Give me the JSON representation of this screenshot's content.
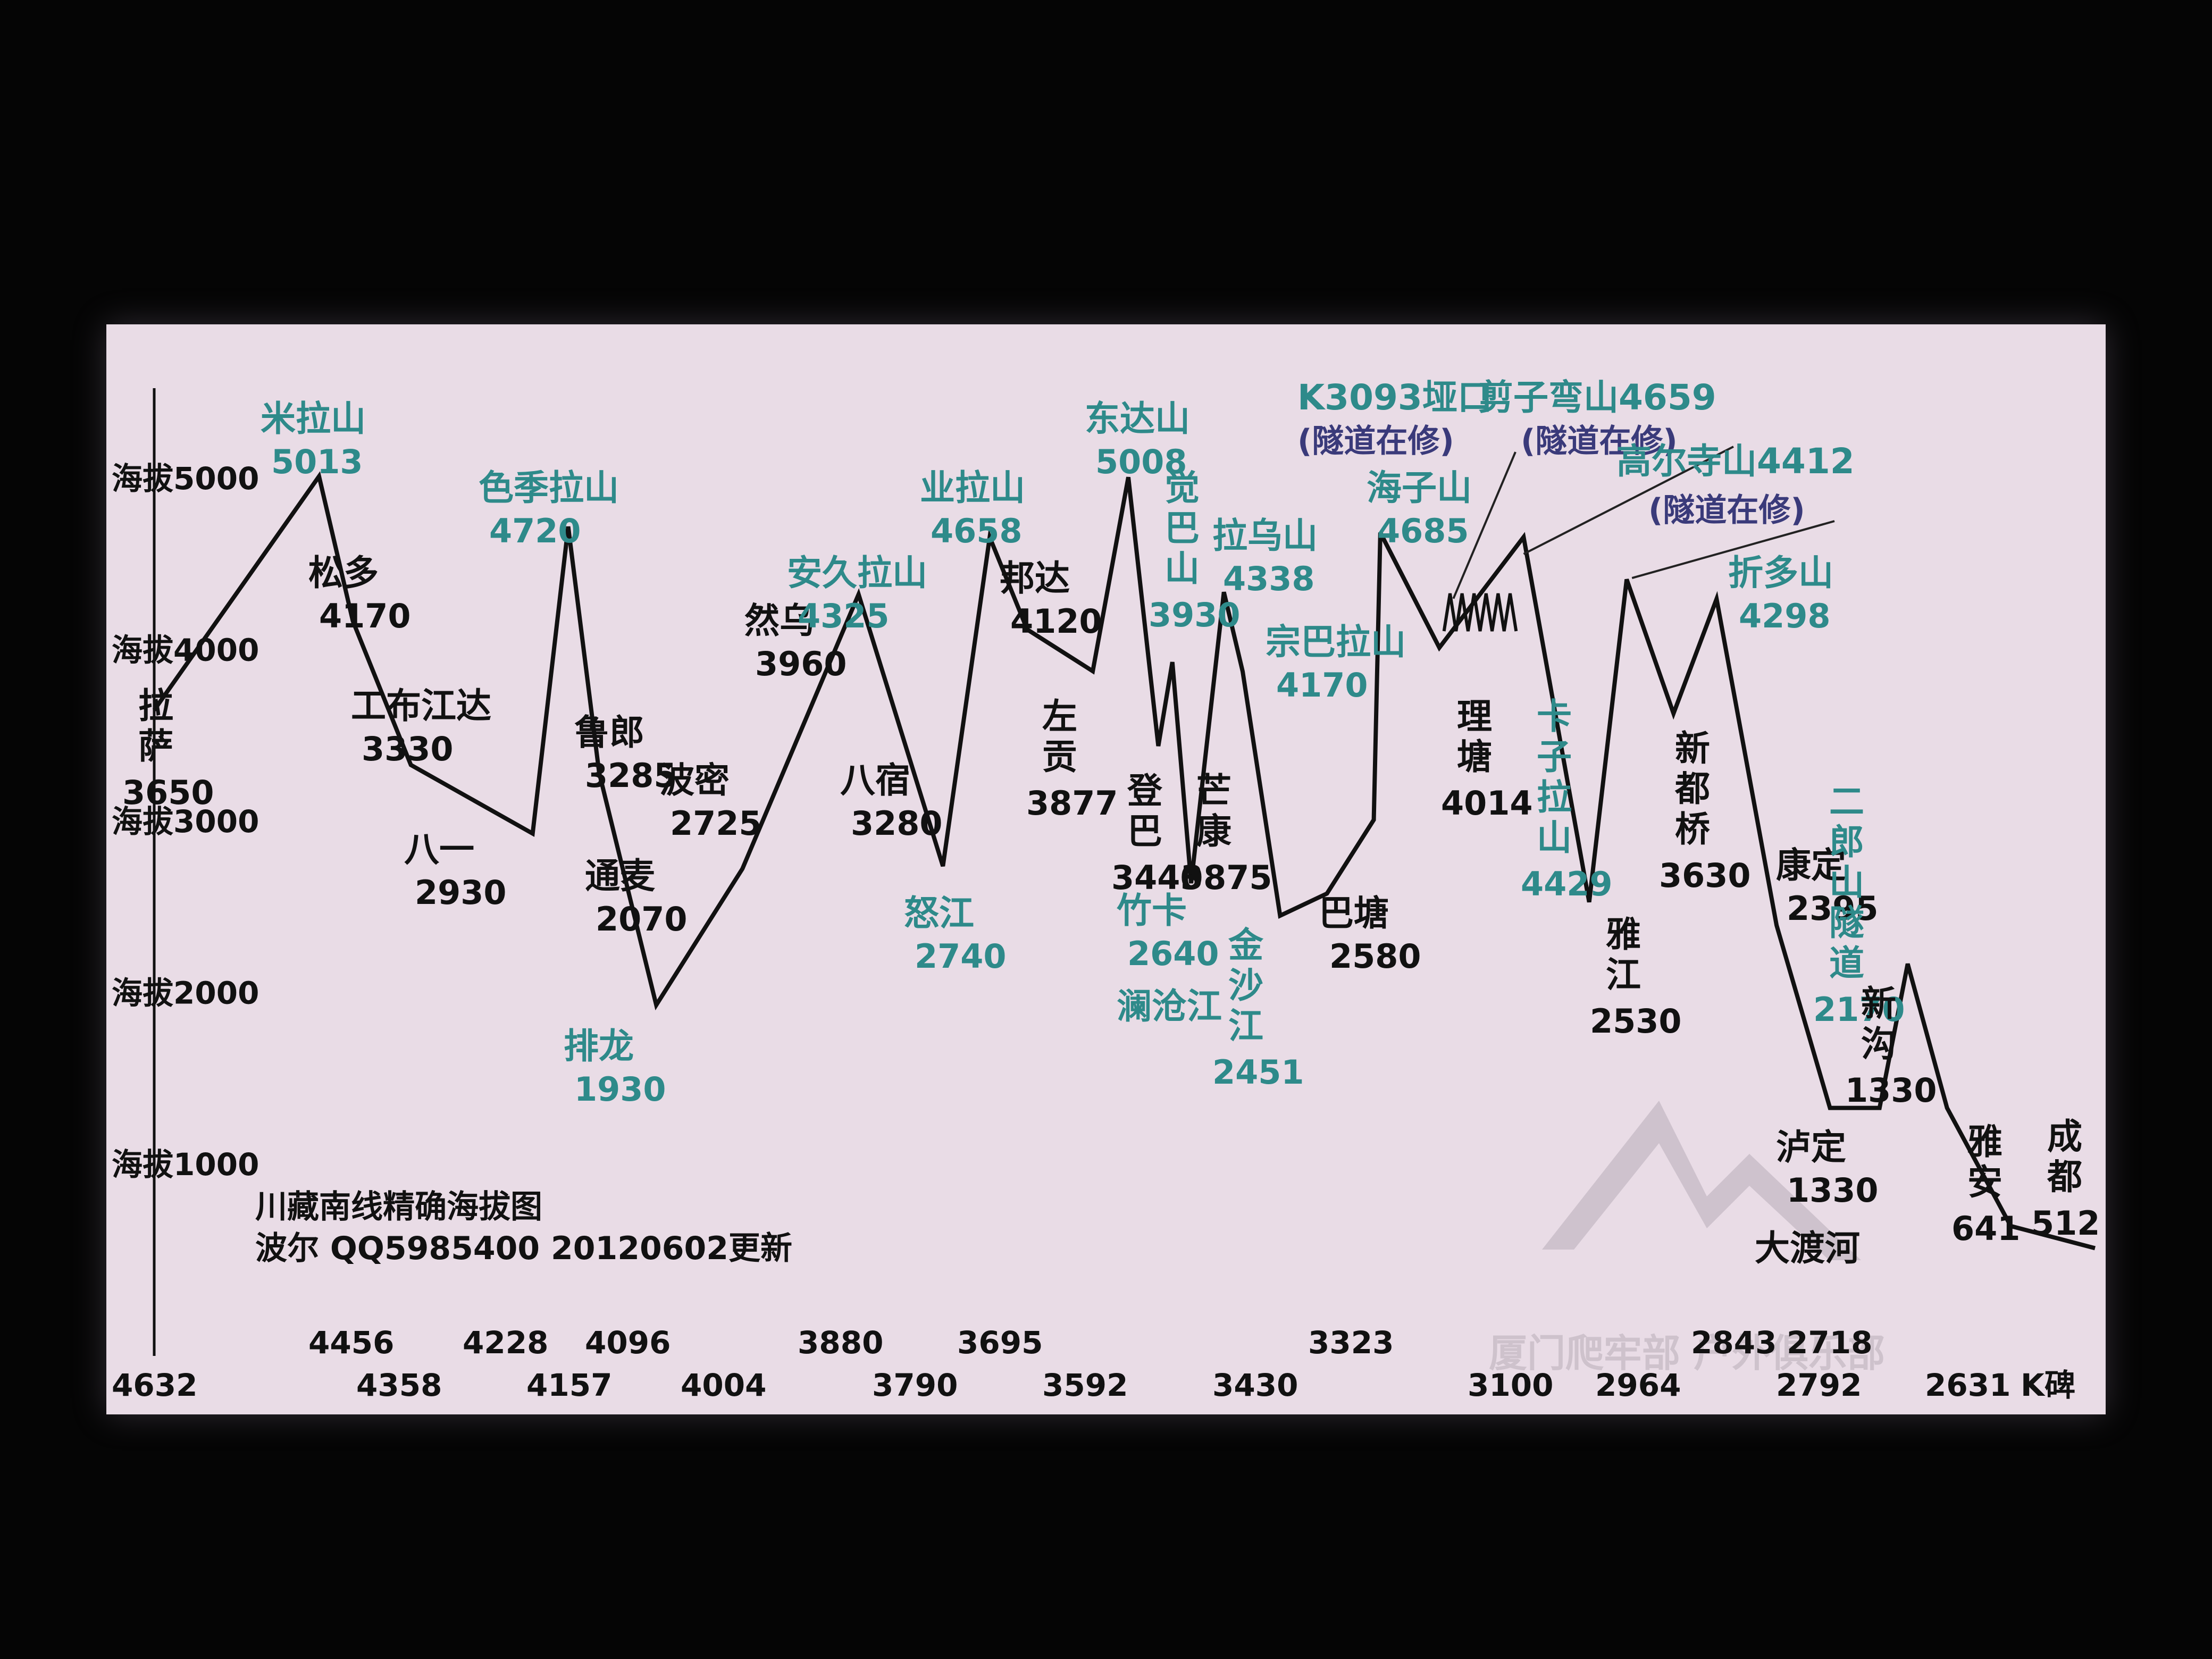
{
  "chart_data": {
    "type": "line",
    "title": "川藏南线精确海拔图",
    "subtitle": "波尔 QQ5985400 20120602更新",
    "ylim": [
      1000,
      5000
    ],
    "yticks": [
      {
        "value": 5000,
        "label": "海拔5000"
      },
      {
        "value": 4000,
        "label": "海拔4000"
      },
      {
        "value": 3000,
        "label": "海拔3000"
      },
      {
        "value": 2000,
        "label": "海拔2000"
      },
      {
        "value": 1000,
        "label": "海拔1000"
      }
    ],
    "xaxis_unit": "K碑",
    "xticks_upper": [
      "4456",
      "4228",
      "4096",
      "3880",
      "3695",
      "3323",
      "2843",
      "2718"
    ],
    "xticks_lower": [
      "4632",
      "4358",
      "4157",
      "4004",
      "3790",
      "3592",
      "3430",
      "3100",
      "2964",
      "2792",
      "2631"
    ],
    "colors": {
      "line": "#111111",
      "pass": "#2e8a8a",
      "town": "#111111",
      "note": "#3a3a7a"
    },
    "series": [
      {
        "points": [
          {
            "km": 4632,
            "alt": 3650
          },
          {
            "km": 4456,
            "alt": 5013
          },
          {
            "km": 4420,
            "alt": 4170
          },
          {
            "km": 4358,
            "alt": 3330
          },
          {
            "km": 4228,
            "alt": 2930
          },
          {
            "km": 4190,
            "alt": 4720
          },
          {
            "km": 4157,
            "alt": 3285
          },
          {
            "km": 4096,
            "alt": 1930
          },
          {
            "km": 4004,
            "alt": 2725
          },
          {
            "km": 3880,
            "alt": 4325
          },
          {
            "km": 3790,
            "alt": 2740
          },
          {
            "km": 3740,
            "alt": 4658
          },
          {
            "km": 3700,
            "alt": 4120
          },
          {
            "km": 3630,
            "alt": 3877
          },
          {
            "km": 3592,
            "alt": 5008
          },
          {
            "km": 3560,
            "alt": 3440
          },
          {
            "km": 3545,
            "alt": 3930
          },
          {
            "km": 3525,
            "alt": 2640
          },
          {
            "km": 3490,
            "alt": 4338
          },
          {
            "km": 3470,
            "alt": 3875
          },
          {
            "km": 3430,
            "alt": 2451
          },
          {
            "km": 3380,
            "alt": 2580
          },
          {
            "km": 3330,
            "alt": 3010
          },
          {
            "km": 3323,
            "alt": 4685
          },
          {
            "km": 3260,
            "alt": 4014
          },
          {
            "km": 3170,
            "alt": 4659
          },
          {
            "km": 3100,
            "alt": 2530
          },
          {
            "km": 3060,
            "alt": 4412
          },
          {
            "km": 3010,
            "alt": 3630
          },
          {
            "km": 2964,
            "alt": 4298
          },
          {
            "km": 2900,
            "alt": 2395
          },
          {
            "km": 2843,
            "alt": 1330
          },
          {
            "km": 2790,
            "alt": 1330
          },
          {
            "km": 2760,
            "alt": 2170
          },
          {
            "km": 2718,
            "alt": 1330
          },
          {
            "km": 2650,
            "alt": 641
          },
          {
            "km": 2560,
            "alt": 512
          }
        ]
      }
    ],
    "annotations": [
      {
        "name": "拉萨",
        "alt": "3650",
        "kind": "town"
      },
      {
        "name": "米拉山",
        "alt": "5013",
        "kind": "pass"
      },
      {
        "name": "松多",
        "alt": "4170",
        "kind": "town"
      },
      {
        "name": "工布江达",
        "alt": "3330",
        "kind": "town"
      },
      {
        "name": "八一",
        "alt": "2930",
        "kind": "town"
      },
      {
        "name": "色季拉山",
        "alt": "4720",
        "kind": "pass"
      },
      {
        "name": "鲁郎",
        "alt": "3285",
        "kind": "town"
      },
      {
        "name": "通麦",
        "alt": "2070",
        "kind": "town"
      },
      {
        "name": "排龙",
        "alt": "1930",
        "kind": "pass"
      },
      {
        "name": "波密",
        "alt": "2725",
        "kind": "town"
      },
      {
        "name": "然乌",
        "alt": "3960",
        "kind": "town"
      },
      {
        "name": "安久拉山",
        "alt": "4325",
        "kind": "pass"
      },
      {
        "name": "八宿",
        "alt": "3280",
        "kind": "town"
      },
      {
        "name": "怒江",
        "alt": "2740",
        "kind": "pass"
      },
      {
        "name": "业拉山",
        "alt": "4658",
        "kind": "pass"
      },
      {
        "name": "邦达",
        "alt": "4120",
        "kind": "town"
      },
      {
        "name": "左贡",
        "alt": "3877",
        "kind": "town"
      },
      {
        "name": "东达山",
        "alt": "5008",
        "kind": "pass"
      },
      {
        "name": "觉巴山",
        "alt": "3930",
        "kind": "pass"
      },
      {
        "name": "登巴",
        "alt": "3440",
        "kind": "town"
      },
      {
        "name": "竹卡",
        "alt": "2640",
        "kind": "pass"
      },
      {
        "name": "澜沧江",
        "alt": "",
        "kind": "pass"
      },
      {
        "name": "拉乌山",
        "alt": "4338",
        "kind": "pass"
      },
      {
        "name": "芒康",
        "alt": "3875",
        "kind": "town"
      },
      {
        "name": "宗巴拉山",
        "alt": "4170",
        "kind": "pass"
      },
      {
        "name": "金沙江",
        "alt": "2451",
        "kind": "pass"
      },
      {
        "name": "巴塘",
        "alt": "2580",
        "kind": "town"
      },
      {
        "name": "海子山",
        "alt": "4685",
        "kind": "pass"
      },
      {
        "name": "K3093垭口",
        "alt": "",
        "kind": "pass"
      },
      {
        "name": "(隧道在修)",
        "alt": "",
        "kind": "note"
      },
      {
        "name": "剪子弯山4659",
        "alt": "",
        "kind": "pass"
      },
      {
        "name": "(隧道在修)",
        "alt": "",
        "kind": "note"
      },
      {
        "name": "理塘",
        "alt": "4014",
        "kind": "town"
      },
      {
        "name": "卡子拉山",
        "alt": "4429",
        "kind": "pass"
      },
      {
        "name": "高尔寺山4412",
        "alt": "",
        "kind": "pass"
      },
      {
        "name": "(隧道在修)",
        "alt": "",
        "kind": "note"
      },
      {
        "name": "雅江",
        "alt": "2530",
        "kind": "town"
      },
      {
        "name": "新都桥",
        "alt": "3630",
        "kind": "town"
      },
      {
        "name": "折多山",
        "alt": "4298",
        "kind": "pass"
      },
      {
        "name": "康定",
        "alt": "2395",
        "kind": "town"
      },
      {
        "name": "二郎山隧道",
        "alt": "2170",
        "kind": "pass"
      },
      {
        "name": "新沟",
        "alt": "1330",
        "kind": "town"
      },
      {
        "name": "泸定",
        "alt": "1330",
        "kind": "town"
      },
      {
        "name": "大渡河",
        "alt": "",
        "kind": "town"
      },
      {
        "name": "雅安",
        "alt": "641",
        "kind": "town"
      },
      {
        "name": "成都",
        "alt": "512",
        "kind": "town"
      }
    ],
    "watermark": "厦门爬牢部  户外俱乐部"
  }
}
